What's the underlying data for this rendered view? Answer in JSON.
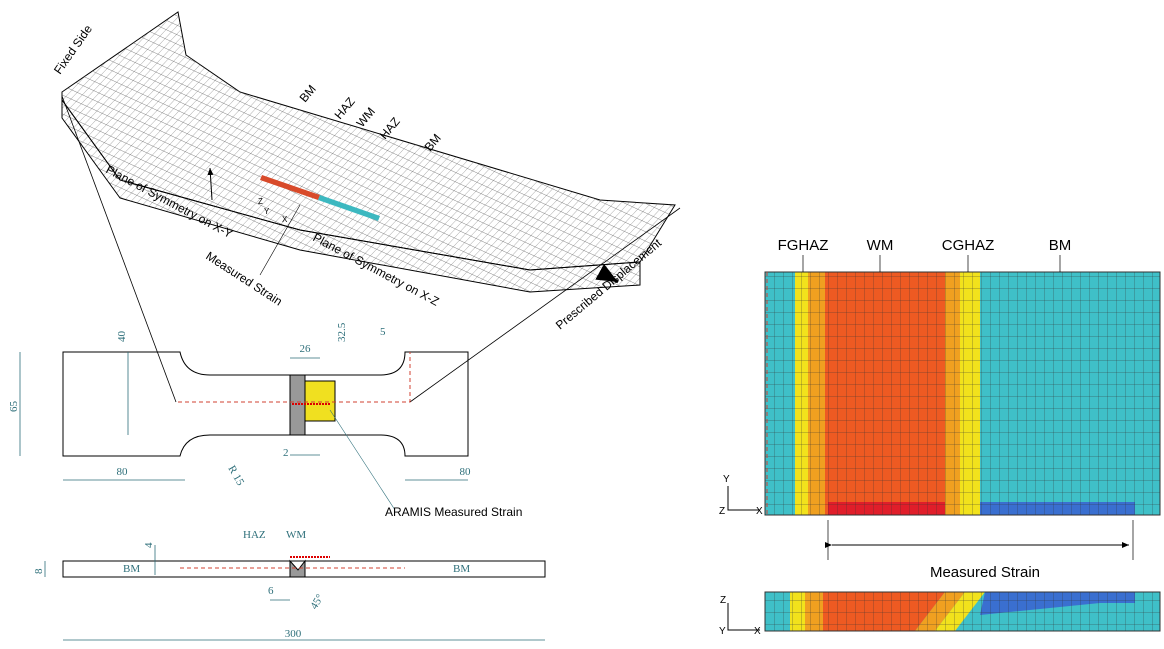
{
  "mesh_3d": {
    "fixed_side": "Fixed Side",
    "zones": [
      "BM",
      "HAZ",
      "WM",
      "HAZ",
      "BM"
    ],
    "plane_xy": "Plane of Symmetry on X-Y",
    "measured_strain": "Measured Strain",
    "plane_xz": "Plane of Symmetry on X-Z",
    "prescribed_displacement": "Prescribed Displacement",
    "axes": [
      "Z",
      "Y",
      "X"
    ]
  },
  "plan_view": {
    "dimensions": [
      "40",
      "26",
      "32.5",
      "5",
      "65",
      "80",
      "R 15",
      "2",
      "80"
    ],
    "aramis": "ARAMIS Measured Strain"
  },
  "side_view": {
    "zones": [
      "HAZ",
      "WM"
    ],
    "dimensions": [
      "4",
      "8",
      "6",
      "45°",
      "300"
    ],
    "materials": [
      "BM",
      "BM"
    ]
  },
  "detail_top": {
    "zones": [
      "FGHAZ",
      "WM",
      "CGHAZ",
      "BM"
    ],
    "axes": [
      "Y",
      "Z",
      "X"
    ],
    "measured_strain": "Measured Strain"
  },
  "detail_side": {
    "axes": [
      "Z",
      "Y",
      "X"
    ]
  }
}
